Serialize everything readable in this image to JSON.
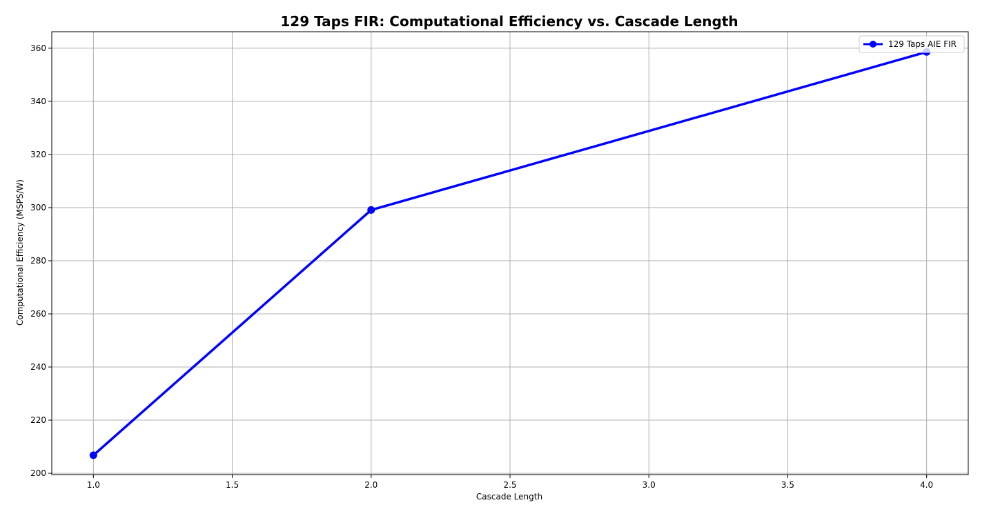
{
  "chart_data": {
    "type": "line",
    "title": "129 Taps FIR: Computational Efficiency vs. Cascade Length",
    "xlabel": "Cascade Length",
    "ylabel": "Computational Efficiency (MSPS/W)",
    "xlim": [
      0.85,
      4.15
    ],
    "ylim": [
      199.5,
      366.2
    ],
    "xticks": [
      1.0,
      1.5,
      2.0,
      2.5,
      3.0,
      3.5,
      4.0
    ],
    "xtick_labels": [
      "1.0",
      "1.5",
      "2.0",
      "2.5",
      "3.0",
      "3.5",
      "4.0"
    ],
    "yticks": [
      200,
      220,
      240,
      260,
      280,
      300,
      320,
      340,
      360
    ],
    "ytick_labels": [
      "200",
      "220",
      "240",
      "260",
      "280",
      "300",
      "320",
      "340",
      "360"
    ],
    "grid": true,
    "legend_position": "top-right",
    "series": [
      {
        "name": "129 Taps AIE FIR",
        "color": "#0000ff",
        "marker": "circle",
        "x": [
          1,
          2,
          4
        ],
        "y": [
          206.8,
          299.1,
          358.6
        ]
      }
    ]
  }
}
